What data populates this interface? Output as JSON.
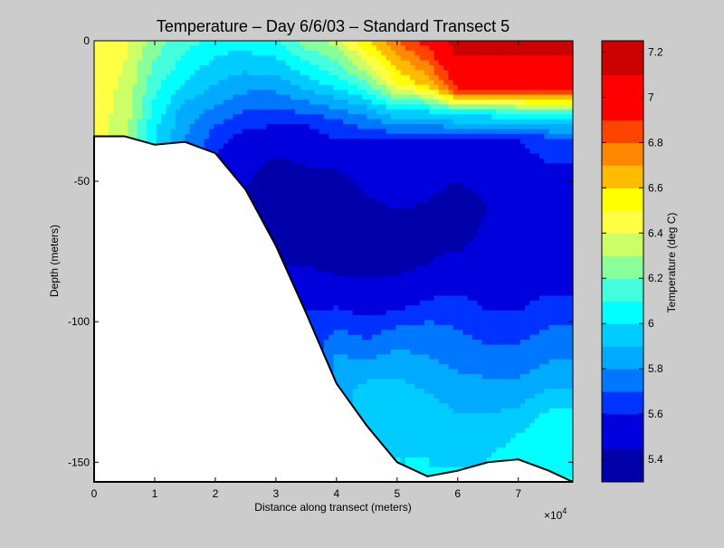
{
  "chart_data": {
    "type": "heatmap",
    "title": "Temperature – Day 6/6/03 – Standard Transect 5",
    "xlabel": "Distance along transect (meters)",
    "ylabel": "Depth (meters)",
    "x_multiplier_label": "×10",
    "x_multiplier_exp": "4",
    "x_range": [
      0,
      79000
    ],
    "y_range": [
      -157,
      0
    ],
    "x_ticks": [
      "0",
      "1",
      "2",
      "3",
      "4",
      "5",
      "6",
      "7"
    ],
    "x_tick_values": [
      0,
      10000,
      20000,
      30000,
      40000,
      50000,
      60000,
      70000
    ],
    "y_ticks": [
      "0",
      "-50",
      "-100",
      "-150"
    ],
    "y_tick_values": [
      0,
      -50,
      -100,
      -150
    ],
    "colorbar": {
      "label": "Temperature (deg C)",
      "range": [
        5.3,
        7.25
      ],
      "ticks": [
        "5.4",
        "5.6",
        "5.8",
        "6",
        "6.2",
        "6.4",
        "6.6",
        "6.8",
        "7",
        "7.2"
      ],
      "tick_values": [
        5.4,
        5.6,
        5.8,
        6.0,
        6.2,
        6.4,
        6.6,
        6.8,
        7.0,
        7.2
      ],
      "levels": [
        {
          "value": 5.3,
          "color": "#0000aa"
        },
        {
          "value": 5.45,
          "color": "#0000dd"
        },
        {
          "value": 5.6,
          "color": "#0033ff"
        },
        {
          "value": 5.7,
          "color": "#0077ff"
        },
        {
          "value": 5.8,
          "color": "#00aaff"
        },
        {
          "value": 5.9,
          "color": "#00ccff"
        },
        {
          "value": 6.0,
          "color": "#00ffff"
        },
        {
          "value": 6.1,
          "color": "#44ffdd"
        },
        {
          "value": 6.2,
          "color": "#88ff99"
        },
        {
          "value": 6.3,
          "color": "#ccff66"
        },
        {
          "value": 6.4,
          "color": "#ffff44"
        },
        {
          "value": 6.5,
          "color": "#ffff00"
        },
        {
          "value": 6.6,
          "color": "#ffbb00"
        },
        {
          "value": 6.7,
          "color": "#ff8800"
        },
        {
          "value": 6.8,
          "color": "#ff4400"
        },
        {
          "value": 6.9,
          "color": "#ff0000"
        },
        {
          "value": 7.1,
          "color": "#cc0000"
        }
      ]
    },
    "bottom_profile": [
      {
        "x": 0,
        "y": -34
      },
      {
        "x": 5000,
        "y": -34
      },
      {
        "x": 10000,
        "y": -37
      },
      {
        "x": 15000,
        "y": -36
      },
      {
        "x": 20000,
        "y": -40
      },
      {
        "x": 25000,
        "y": -53
      },
      {
        "x": 30000,
        "y": -73
      },
      {
        "x": 35000,
        "y": -97
      },
      {
        "x": 40000,
        "y": -122
      },
      {
        "x": 45000,
        "y": -137
      },
      {
        "x": 50000,
        "y": -150
      },
      {
        "x": 55000,
        "y": -155
      },
      {
        "x": 60000,
        "y": -153
      },
      {
        "x": 65000,
        "y": -150
      },
      {
        "x": 70000,
        "y": -149
      },
      {
        "x": 75000,
        "y": -153
      },
      {
        "x": 79000,
        "y": -157
      }
    ],
    "columns": [
      {
        "x": 0,
        "profile": [
          [
            0,
            6.45
          ],
          [
            30,
            6.45
          ]
        ]
      },
      {
        "x": 5000,
        "profile": [
          [
            0,
            6.42
          ],
          [
            30,
            6.35
          ]
        ]
      },
      {
        "x": 10000,
        "profile": [
          [
            0,
            6.25
          ],
          [
            20,
            6.1
          ],
          [
            34,
            6.0
          ]
        ]
      },
      {
        "x": 15000,
        "profile": [
          [
            0,
            6.15
          ],
          [
            15,
            6.0
          ],
          [
            25,
            5.85
          ],
          [
            35,
            5.8
          ]
        ]
      },
      {
        "x": 20000,
        "profile": [
          [
            0,
            6.05
          ],
          [
            20,
            5.85
          ],
          [
            30,
            5.7
          ],
          [
            40,
            5.6
          ]
        ]
      },
      {
        "x": 25000,
        "profile": [
          [
            0,
            6.05
          ],
          [
            15,
            5.85
          ],
          [
            25,
            5.7
          ],
          [
            35,
            5.55
          ],
          [
            52,
            5.45
          ]
        ]
      },
      {
        "x": 30000,
        "profile": [
          [
            0,
            6.1
          ],
          [
            15,
            5.85
          ],
          [
            30,
            5.6
          ],
          [
            45,
            5.4
          ],
          [
            60,
            5.35
          ],
          [
            72,
            5.45
          ]
        ]
      },
      {
        "x": 35000,
        "profile": [
          [
            0,
            6.25
          ],
          [
            15,
            5.95
          ],
          [
            30,
            5.6
          ],
          [
            45,
            5.45
          ],
          [
            70,
            5.35
          ],
          [
            85,
            5.5
          ],
          [
            96,
            5.6
          ]
        ]
      },
      {
        "x": 40000,
        "profile": [
          [
            0,
            6.35
          ],
          [
            15,
            6.05
          ],
          [
            28,
            5.7
          ],
          [
            45,
            5.45
          ],
          [
            75,
            5.35
          ],
          [
            95,
            5.6
          ],
          [
            110,
            5.8
          ],
          [
            121,
            5.85
          ]
        ]
      },
      {
        "x": 45000,
        "profile": [
          [
            0,
            6.6
          ],
          [
            15,
            6.2
          ],
          [
            25,
            5.85
          ],
          [
            40,
            5.5
          ],
          [
            75,
            5.38
          ],
          [
            95,
            5.55
          ],
          [
            110,
            5.75
          ],
          [
            125,
            5.95
          ],
          [
            136,
            5.95
          ]
        ]
      },
      {
        "x": 50000,
        "profile": [
          [
            0,
            6.8
          ],
          [
            15,
            6.5
          ],
          [
            25,
            6.0
          ],
          [
            35,
            5.6
          ],
          [
            60,
            5.45
          ],
          [
            75,
            5.38
          ],
          [
            90,
            5.5
          ],
          [
            105,
            5.75
          ],
          [
            125,
            5.95
          ],
          [
            149,
            6.0
          ]
        ]
      },
      {
        "x": 55000,
        "profile": [
          [
            0,
            6.95
          ],
          [
            15,
            6.65
          ],
          [
            25,
            6.0
          ],
          [
            35,
            5.6
          ],
          [
            65,
            5.4
          ],
          [
            80,
            5.45
          ],
          [
            100,
            5.7
          ],
          [
            125,
            5.9
          ],
          [
            140,
            6.0
          ],
          [
            154,
            6.0
          ]
        ]
      },
      {
        "x": 60000,
        "profile": [
          [
            0,
            7.2
          ],
          [
            18,
            6.9
          ],
          [
            25,
            6.1
          ],
          [
            35,
            5.6
          ],
          [
            60,
            5.35
          ],
          [
            75,
            5.45
          ],
          [
            95,
            5.65
          ],
          [
            125,
            5.85
          ],
          [
            140,
            5.95
          ],
          [
            152,
            6.0
          ]
        ]
      },
      {
        "x": 65000,
        "profile": [
          [
            0,
            7.2
          ],
          [
            18,
            6.9
          ],
          [
            25,
            6.1
          ],
          [
            35,
            5.6
          ],
          [
            60,
            5.45
          ],
          [
            90,
            5.55
          ],
          [
            120,
            5.8
          ],
          [
            140,
            5.95
          ],
          [
            149,
            6.0
          ]
        ]
      },
      {
        "x": 70000,
        "profile": [
          [
            0,
            7.2
          ],
          [
            18,
            6.9
          ],
          [
            25,
            6.15
          ],
          [
            35,
            5.6
          ],
          [
            60,
            5.5
          ],
          [
            90,
            5.55
          ],
          [
            120,
            5.8
          ],
          [
            140,
            6.0
          ],
          [
            148,
            6.05
          ]
        ]
      },
      {
        "x": 75000,
        "profile": [
          [
            0,
            7.2
          ],
          [
            18,
            6.9
          ],
          [
            25,
            6.2
          ],
          [
            35,
            5.65
          ],
          [
            60,
            5.5
          ],
          [
            90,
            5.6
          ],
          [
            120,
            5.85
          ],
          [
            135,
            6.05
          ],
          [
            152,
            6.1
          ]
        ]
      },
      {
        "x": 79000,
        "profile": [
          [
            0,
            7.2
          ],
          [
            18,
            6.9
          ],
          [
            25,
            6.2
          ],
          [
            35,
            5.65
          ],
          [
            60,
            5.5
          ],
          [
            90,
            5.6
          ],
          [
            120,
            5.85
          ],
          [
            135,
            6.05
          ],
          [
            156,
            6.1
          ]
        ]
      }
    ]
  }
}
